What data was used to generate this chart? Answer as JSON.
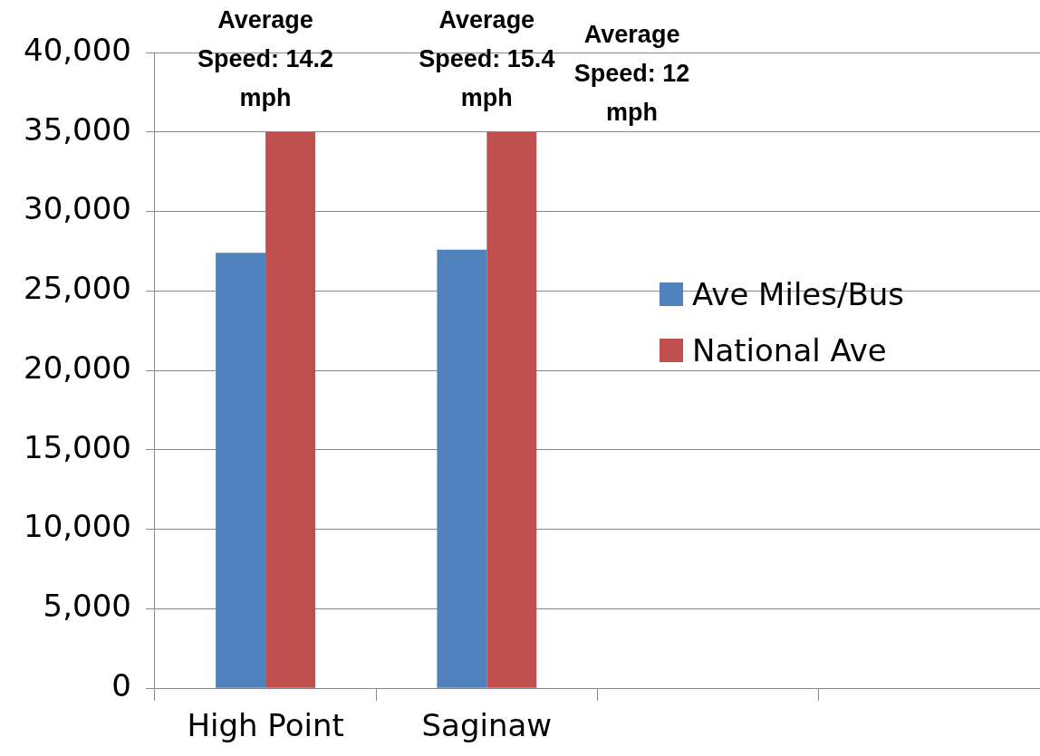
{
  "chart_data": {
    "type": "bar",
    "categories": [
      "High Point",
      "Saginaw",
      null,
      null
    ],
    "series": [
      {
        "name": "Ave Miles/Bus",
        "color": "#4f81bd",
        "values": [
          27400,
          27600,
          null,
          null
        ]
      },
      {
        "name": "National Ave",
        "color": "#c0504d",
        "values": [
          35000,
          35000,
          null,
          null
        ]
      }
    ],
    "ylim": [
      0,
      40000
    ],
    "yticks": [
      {
        "value": 0,
        "label": "0"
      },
      {
        "value": 5000,
        "label": "5,000"
      },
      {
        "value": 10000,
        "label": "10,000"
      },
      {
        "value": 15000,
        "label": "15,000"
      },
      {
        "value": 20000,
        "label": "20,000"
      },
      {
        "value": 25000,
        "label": "25,000"
      },
      {
        "value": 30000,
        "label": "30,000"
      },
      {
        "value": 35000,
        "label": "35,000"
      },
      {
        "value": 40000,
        "label": "40,000"
      }
    ],
    "grid": "y",
    "legend": "right",
    "annotations": [
      "Average Speed: 14.2 mph",
      "Average Speed: 15.4 mph",
      "Average Speed: 12 mph"
    ]
  }
}
